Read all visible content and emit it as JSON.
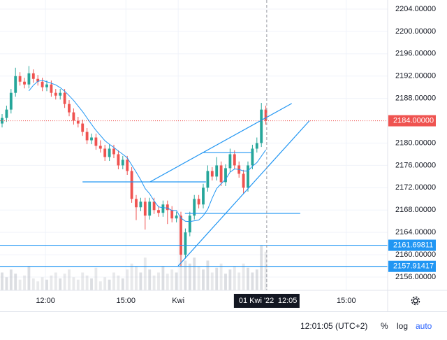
{
  "chart_data": {
    "type": "candlestick",
    "ylim": [
      2153.62,
      2205.63
    ],
    "xlim": [
      -0.47,
      86.25
    ],
    "yticks": [
      {
        "value": 2204,
        "label": "2204.00000"
      },
      {
        "value": 2200,
        "label": "2200.00000"
      },
      {
        "value": 2196,
        "label": "2196.00000"
      },
      {
        "value": 2192,
        "label": "2192.00000"
      },
      {
        "value": 2188,
        "label": "2188.00000"
      },
      {
        "value": 2180,
        "label": "2180.00000"
      },
      {
        "value": 2176,
        "label": "2176.00000"
      },
      {
        "value": 2172,
        "label": "2172.00000"
      },
      {
        "value": 2168,
        "label": "2168.00000"
      },
      {
        "value": 2164,
        "label": "2164.00000"
      },
      {
        "value": 2160,
        "label": "2160.00000"
      },
      {
        "value": 2156,
        "label": "2156.00000"
      }
    ],
    "xticks": [
      {
        "value": 9.7,
        "label": "12:00"
      },
      {
        "value": 27.7,
        "label": "15:00"
      },
      {
        "value": 39.4,
        "label": "Kwi"
      },
      {
        "value": 77,
        "label": "15:00"
      }
    ],
    "current_price": {
      "value": 2184,
      "label": "2184.00000",
      "color": "#ef5350"
    },
    "horizontal_lines": [
      {
        "value": 2161.69811,
        "label": "2161.69811"
      },
      {
        "value": 2157.91417,
        "label": "2157.91417"
      }
    ],
    "line_color": "#2196f3",
    "crosshair": {
      "value": 59.2,
      "label": "01 Kwi '22",
      "time": "12:05"
    },
    "up_color": "#26a69a",
    "down_color": "#ef5350",
    "open": [
      2183.5,
      2184.5,
      2186,
      2189,
      2192,
      2191,
      2190.5,
      2192.5,
      2191.5,
      2191,
      2190,
      2190.5,
      2189,
      2188.5,
      2189,
      2187,
      2185.5,
      2184,
      2183.5,
      2182,
      2180.5,
      2181,
      2179.5,
      2179,
      2177.5,
      2179,
      2178,
      2176,
      2177,
      2175,
      2170,
      2168.5,
      2169.5,
      2167,
      2169.5,
      2168,
      2167.5,
      2169,
      2168,
      2166.5,
      2167,
      2160,
      2164,
      2167,
      2170,
      2169,
      2172,
      2175,
      2174,
      2176,
      2173,
      2175.5,
      2178,
      2176,
      2174.5,
      2172,
      2176,
      2179,
      2180,
      2186
    ],
    "high": [
      2185.2,
      2186.7,
      2189.7,
      2193.5,
      2192.7,
      2191.7,
      2193.8,
      2193.2,
      2192.2,
      2191.7,
      2191.2,
      2191.2,
      2189.7,
      2189.7,
      2189.7,
      2187.7,
      2186.2,
      2184.7,
      2184.2,
      2182.7,
      2181.7,
      2181.7,
      2180.5,
      2179.7,
      2179.7,
      2179.7,
      2178.7,
      2177.7,
      2177.7,
      2175.7,
      2170.7,
      2170.2,
      2170.2,
      2170.2,
      2170.2,
      2168.7,
      2169.7,
      2169.7,
      2168.7,
      2167.7,
      2167.7,
      2164.7,
      2167.7,
      2170.7,
      2170.7,
      2172.7,
      2176,
      2175.7,
      2177.5,
      2176.7,
      2176.2,
      2179,
      2178.7,
      2176.7,
      2175.2,
      2176.7,
      2179.7,
      2181,
      2187.2,
      2186.7
    ],
    "low": [
      2182.8,
      2183.8,
      2185.3,
      2188.3,
      2190.3,
      2189.8,
      2189.8,
      2190.8,
      2190.3,
      2189.3,
      2189.3,
      2188.3,
      2187.8,
      2187.8,
      2186.3,
      2184.8,
      2183.3,
      2182.8,
      2181.3,
      2179.8,
      2179.8,
      2178.8,
      2178.3,
      2176.8,
      2176.8,
      2177.3,
      2175.3,
      2175.3,
      2174.3,
      2169.3,
      2166.2,
      2167.8,
      2164.5,
      2166.3,
      2167.3,
      2166.8,
      2166.8,
      2165.5,
      2165.8,
      2165.8,
      2157.9,
      2159.3,
      2163.3,
      2166.3,
      2168.3,
      2168.3,
      2171.3,
      2173.3,
      2173.3,
      2172.3,
      2172.3,
      2174.8,
      2175.3,
      2173.8,
      2171,
      2171.3,
      2175.3,
      2178.3,
      2179.3,
      2183.3
    ],
    "close": [
      2184.5,
      2186,
      2189,
      2192,
      2191,
      2190.5,
      2192.5,
      2191.5,
      2191,
      2190,
      2190.5,
      2189,
      2188.5,
      2189,
      2187,
      2185.5,
      2184,
      2183.5,
      2182,
      2180.5,
      2181,
      2179.5,
      2179,
      2177.5,
      2179,
      2178,
      2176,
      2177,
      2175,
      2170,
      2168.5,
      2169.5,
      2167,
      2169.5,
      2168,
      2167.5,
      2169,
      2168,
      2166.5,
      2167,
      2160,
      2164,
      2167,
      2170,
      2169,
      2172,
      2175,
      2174,
      2176,
      2173,
      2175.5,
      2178,
      2176,
      2174.5,
      2172,
      2176,
      2179,
      2180,
      2186,
      2184
    ],
    "volume": [
      30,
      22,
      35,
      28,
      18,
      25,
      40,
      20,
      15,
      22,
      18,
      25,
      30,
      20,
      28,
      35,
      22,
      18,
      30,
      25,
      20,
      38,
      15,
      22,
      18,
      30,
      25,
      20,
      35,
      45,
      40,
      30,
      55,
      35,
      25,
      30,
      40,
      28,
      35,
      30,
      60,
      50,
      45,
      55,
      40,
      35,
      50,
      30,
      38,
      45,
      28,
      35,
      40,
      30,
      45,
      38,
      30,
      35,
      75,
      65
    ],
    "vlim": [
      0,
      100
    ],
    "drawings": [
      {
        "from": [
          33.1,
          2173.05
        ],
        "to": [
          64.8,
          2187.1
        ]
      },
      {
        "from": [
          39.4,
          2158.0
        ],
        "to": [
          68.75,
          2184.0
        ]
      },
      {
        "from": [
          18,
          2173.05
        ],
        "to": [
          45.6,
          2173.05
        ]
      },
      {
        "from": [
          44.8,
          2178.3
        ],
        "to": [
          55.8,
          2178.3
        ]
      },
      {
        "from": [
          40.9,
          2167.4
        ],
        "to": [
          66.7,
          2167.4
        ]
      }
    ]
  },
  "status_bar": {
    "clock": "12:01:05 (UTC+2)",
    "percent": "%",
    "log": "log",
    "auto": "auto"
  }
}
